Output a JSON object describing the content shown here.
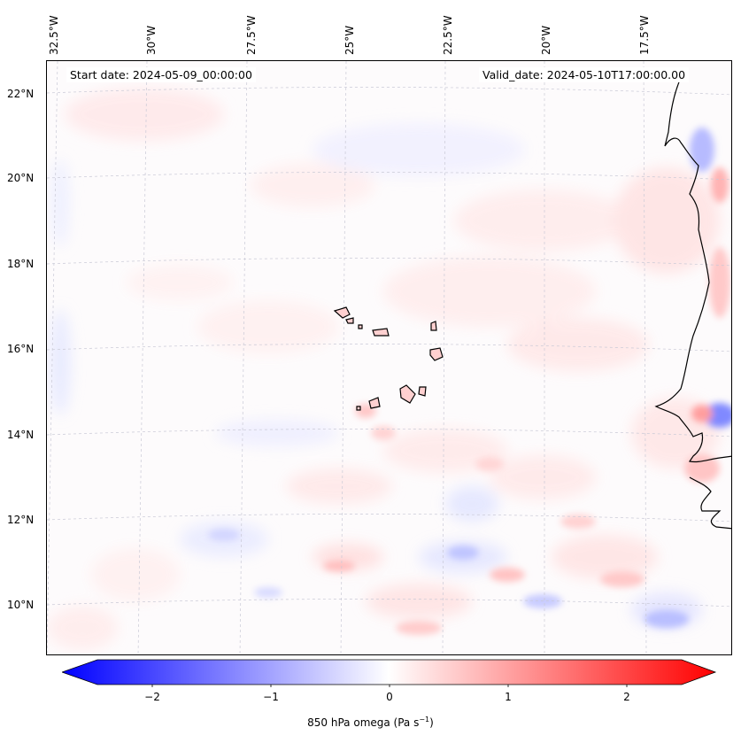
{
  "map": {
    "start_date": "Start date: 2024-05-09_00:00:00",
    "valid_date": "Valid_date: 2024-05-10T17:00:00.00",
    "lon_labels": [
      "32.5°W",
      "30°W",
      "27.5°W",
      "25°W",
      "22.5°W",
      "20°W",
      "17.5°W"
    ],
    "lat_labels": [
      "22°N",
      "20°N",
      "18°N",
      "16°N",
      "14°N",
      "12°N",
      "10°N"
    ]
  },
  "colorbar": {
    "ticks": [
      "−2",
      "−1",
      "0",
      "1",
      "2"
    ],
    "label_prefix": "850 hPa omega (Pa s",
    "label_exp": "−1",
    "label_suffix": ")",
    "low_color": "#0000ff",
    "mid_color": "#ffffff",
    "high_color": "#ff0000"
  }
}
